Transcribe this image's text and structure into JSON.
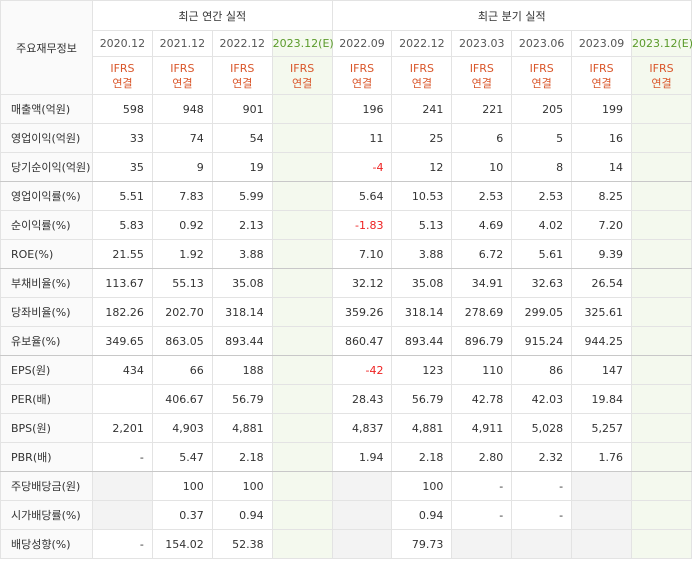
{
  "table": {
    "corner": "주요재무정보",
    "groups": [
      {
        "label": "최근 연간 실적",
        "columns": [
          {
            "period": "2020.12",
            "standard": "IFRS",
            "basis": "연결"
          },
          {
            "period": "2021.12",
            "standard": "IFRS",
            "basis": "연결"
          },
          {
            "period": "2022.12",
            "standard": "IFRS",
            "basis": "연결"
          },
          {
            "period": "2023.12(E)",
            "standard": "IFRS",
            "basis": "연결"
          }
        ]
      },
      {
        "label": "최근 분기 실적",
        "columns": [
          {
            "period": "2022.09",
            "standard": "IFRS",
            "basis": "연결"
          },
          {
            "period": "2022.12",
            "standard": "IFRS",
            "basis": "연결"
          },
          {
            "period": "2023.03",
            "standard": "IFRS",
            "basis": "연결"
          },
          {
            "period": "2023.06",
            "standard": "IFRS",
            "basis": "연결"
          },
          {
            "period": "2023.09",
            "standard": "IFRS",
            "basis": "연결"
          },
          {
            "period": "2023.12(E)",
            "standard": "IFRS",
            "basis": "연결"
          }
        ]
      }
    ],
    "rows": [
      {
        "label": "매출액(억원)",
        "values": [
          "598",
          "948",
          "901",
          null,
          "196",
          "241",
          "221",
          "205",
          "199",
          null
        ]
      },
      {
        "label": "영업이익(억원)",
        "values": [
          "33",
          "74",
          "54",
          null,
          "11",
          "25",
          "6",
          "5",
          "16",
          null
        ]
      },
      {
        "label": "당기순이익(억원)",
        "values": [
          "35",
          "9",
          "19",
          null,
          "-4",
          "12",
          "10",
          "8",
          "14",
          null
        ]
      },
      {
        "label": "영업이익률(%)",
        "values": [
          "5.51",
          "7.83",
          "5.99",
          null,
          "5.64",
          "10.53",
          "2.53",
          "2.53",
          "8.25",
          null
        ]
      },
      {
        "label": "순이익률(%)",
        "values": [
          "5.83",
          "0.92",
          "2.13",
          null,
          "-1.83",
          "5.13",
          "4.69",
          "4.02",
          "7.20",
          null
        ]
      },
      {
        "label": "ROE(%)",
        "values": [
          "21.55",
          "1.92",
          "3.88",
          null,
          "7.10",
          "3.88",
          "6.72",
          "5.61",
          "9.39",
          null
        ]
      },
      {
        "label": "부채비율(%)",
        "values": [
          "113.67",
          "55.13",
          "35.08",
          null,
          "32.12",
          "35.08",
          "34.91",
          "32.63",
          "26.54",
          null
        ]
      },
      {
        "label": "당좌비율(%)",
        "values": [
          "182.26",
          "202.70",
          "318.14",
          null,
          "359.26",
          "318.14",
          "278.69",
          "299.05",
          "325.61",
          null
        ]
      },
      {
        "label": "유보율(%)",
        "values": [
          "349.65",
          "863.05",
          "893.44",
          null,
          "860.47",
          "893.44",
          "896.79",
          "915.24",
          "944.25",
          null
        ]
      },
      {
        "label": "EPS(원)",
        "values": [
          "434",
          "66",
          "188",
          null,
          "-42",
          "123",
          "110",
          "86",
          "147",
          null
        ]
      },
      {
        "label": "PER(배)",
        "values": [
          null,
          "406.67",
          "56.79",
          null,
          "28.43",
          "56.79",
          "42.78",
          "42.03",
          "19.84",
          null
        ]
      },
      {
        "label": "BPS(원)",
        "values": [
          "2,201",
          "4,903",
          "4,881",
          null,
          "4,837",
          "4,881",
          "4,911",
          "5,028",
          "5,257",
          null
        ]
      },
      {
        "label": "PBR(배)",
        "values": [
          "-",
          "5.47",
          "2.18",
          null,
          "1.94",
          "2.18",
          "2.80",
          "2.32",
          "1.76",
          null
        ]
      },
      {
        "label": "주당배당금(원)",
        "values": [
          null,
          "100",
          "100",
          null,
          null,
          "100",
          "-",
          "-",
          null,
          null
        ]
      },
      {
        "label": "시가배당률(%)",
        "values": [
          null,
          "0.37",
          "0.94",
          null,
          null,
          "0.94",
          "-",
          "-",
          null,
          null
        ]
      },
      {
        "label": "배당성향(%)",
        "values": [
          "-",
          "154.02",
          "52.38",
          null,
          null,
          "79.73",
          null,
          null,
          null,
          null
        ]
      }
    ]
  }
}
